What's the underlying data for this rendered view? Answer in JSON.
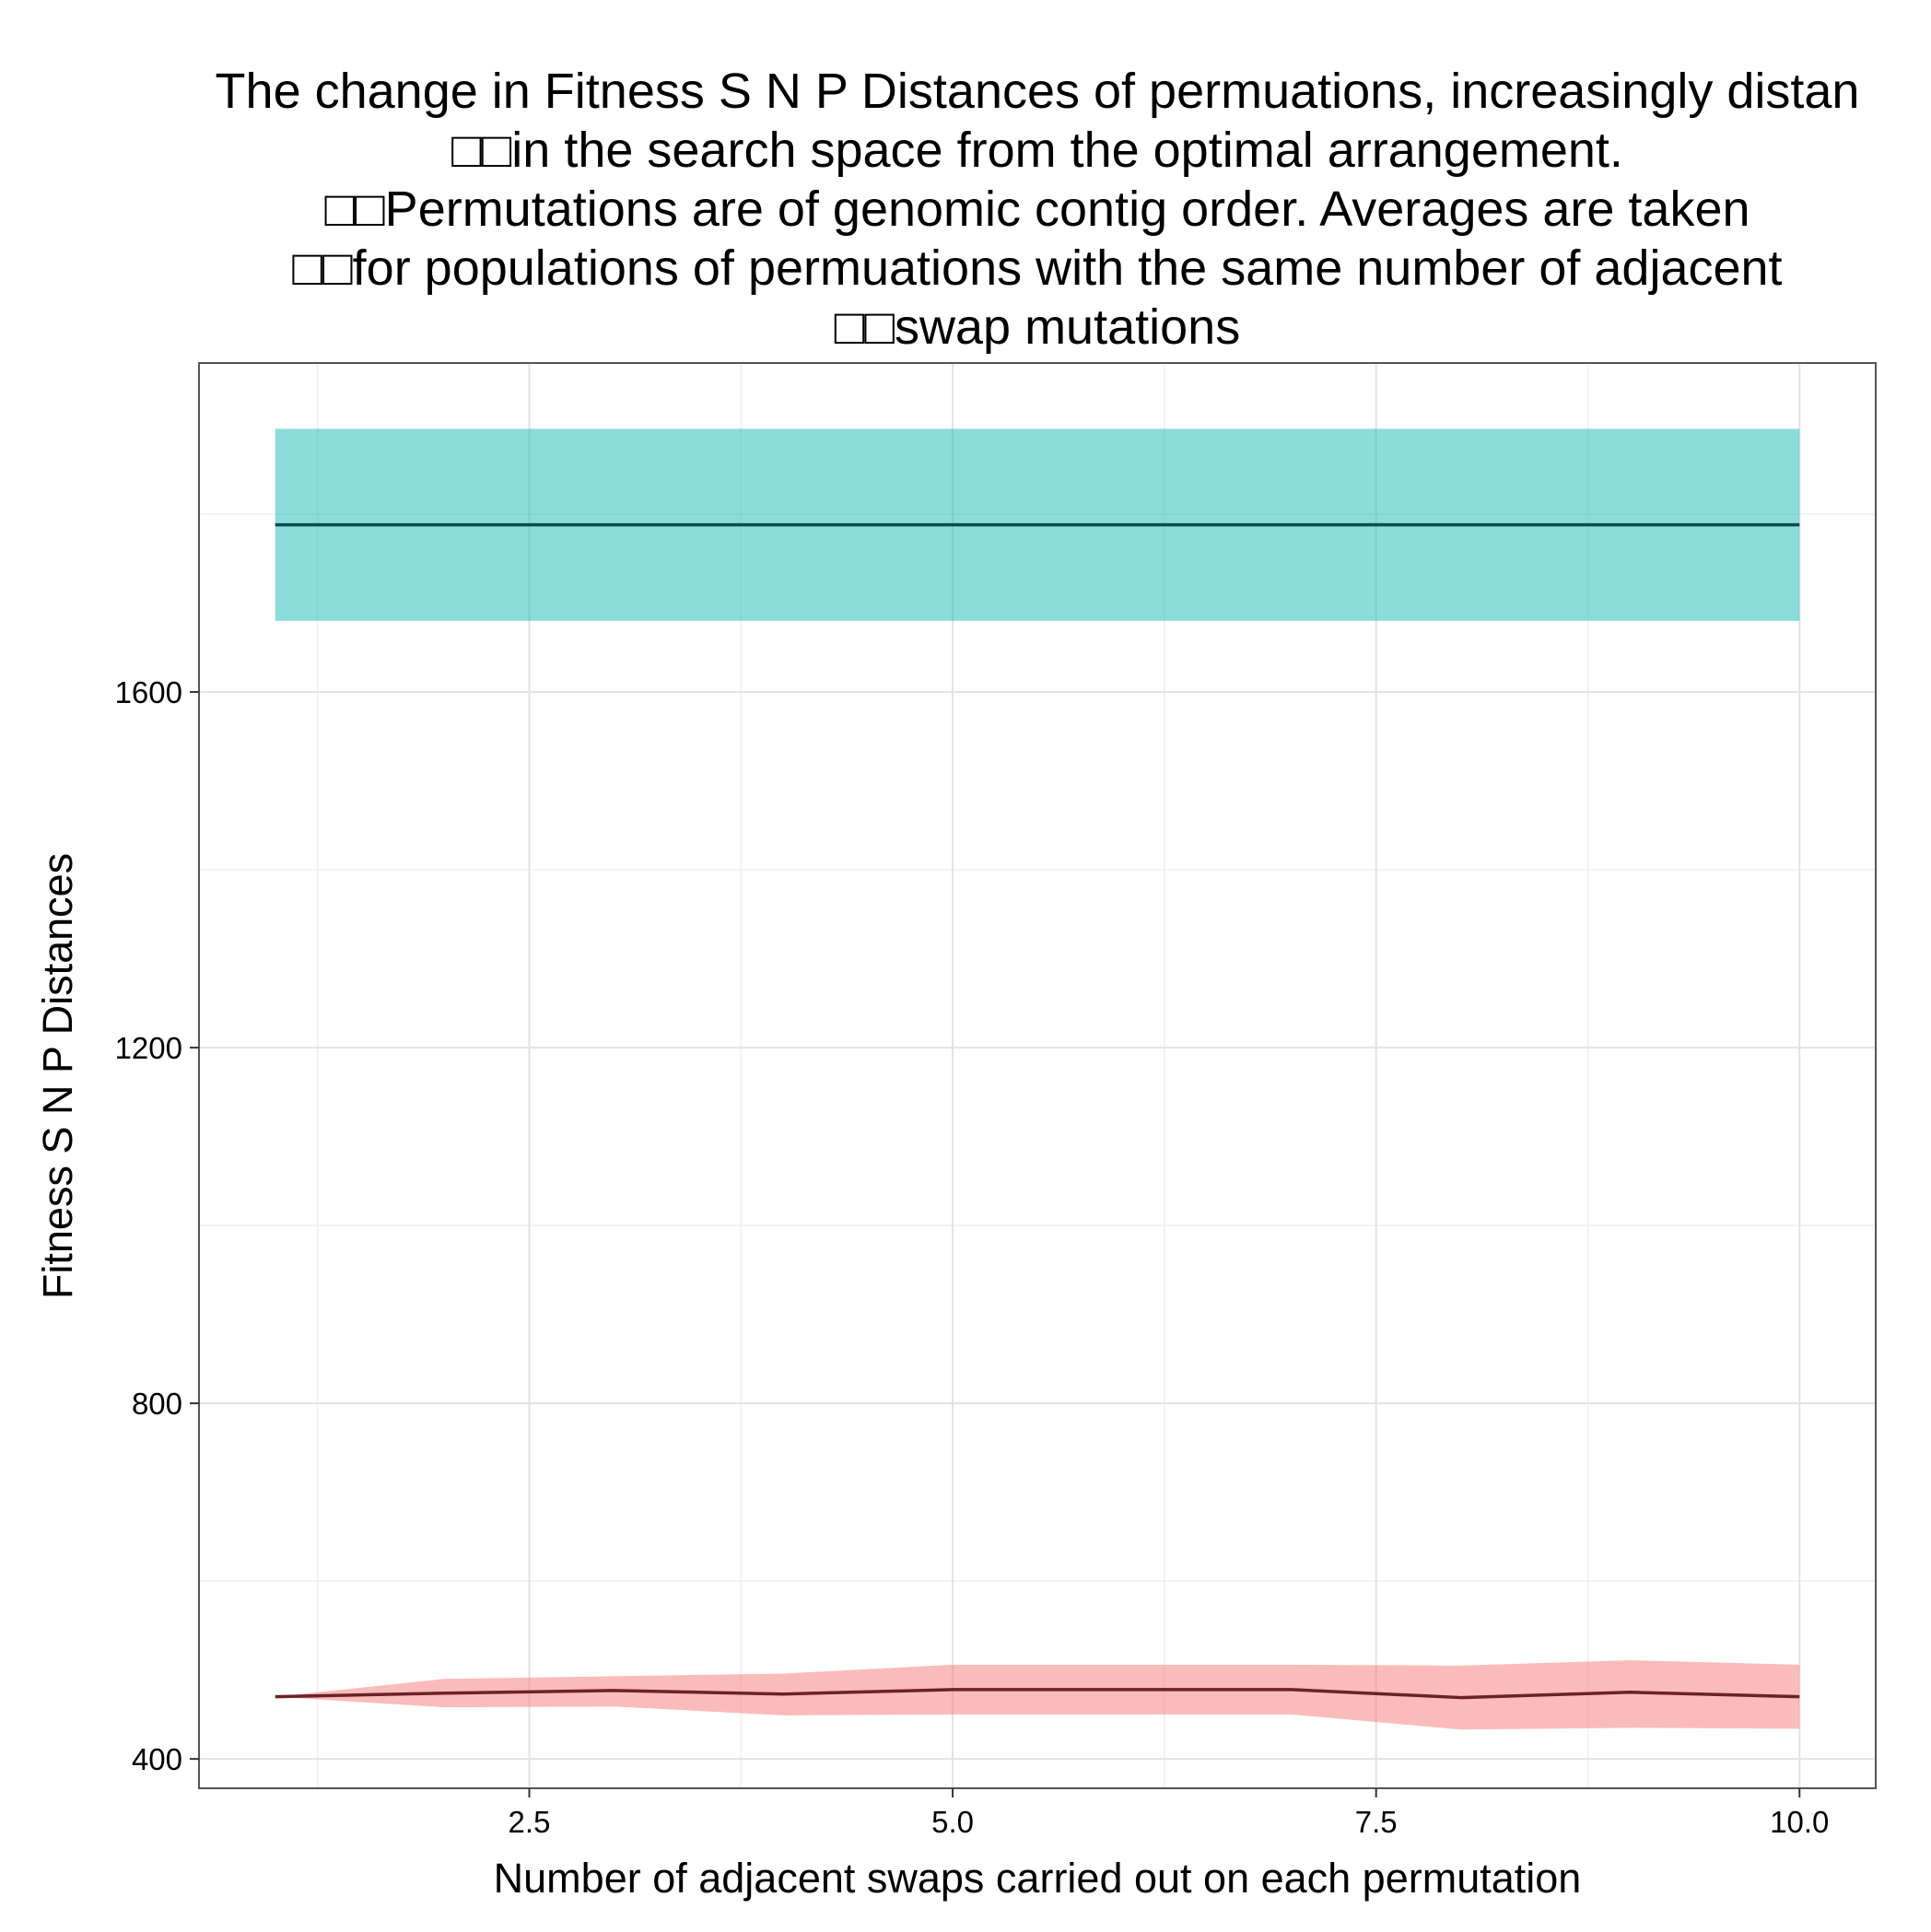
{
  "chart_data": {
    "type": "line",
    "title_lines": [
      "The change in Fitness S N P Distances of permuations, increasingly distan",
      "□□in the search space from the optimal arrangement.",
      "□□Permutations are of genomic contig order. Averages are taken",
      "□□for populations of permuations with the same number of adjacent",
      "□□swap mutations"
    ],
    "xlabel": "Number of adjacent swaps carried out on each permutation",
    "ylabel": "Fitness S N P Distances",
    "xlim": [
      0.55,
      10.45
    ],
    "ylim": [
      367,
      1970
    ],
    "x_ticks": [
      2.5,
      5.0,
      7.5,
      10.0
    ],
    "x_tick_labels": [
      "2.5",
      "5.0",
      "7.5",
      "10.0"
    ],
    "x_minor_ticks": [
      1.25,
      3.75,
      6.25,
      8.75
    ],
    "y_ticks": [
      400,
      800,
      1200,
      1600
    ],
    "y_tick_labels": [
      "400",
      "800",
      "1200",
      "1600"
    ],
    "y_minor_ticks": [
      600,
      1000,
      1400,
      1800
    ],
    "grid": true,
    "legend": "none",
    "series": [
      {
        "x": [
          1,
          2,
          3,
          4,
          5,
          6,
          7,
          8,
          9,
          10
        ],
        "y": [
          1788,
          1788,
          1788,
          1788,
          1788,
          1788,
          1788,
          1788,
          1788,
          1788
        ],
        "lower": [
          1680,
          1680,
          1680,
          1680,
          1680,
          1680,
          1680,
          1680,
          1680,
          1680
        ],
        "upper": [
          1896,
          1896,
          1896,
          1896,
          1896,
          1896,
          1896,
          1896,
          1896,
          1896
        ],
        "line_color": "#0f4a4e",
        "band_color": "#1cb9ba"
      },
      {
        "x": [
          1,
          2,
          3,
          4,
          5,
          6,
          7,
          8,
          9,
          10
        ],
        "y": [
          470,
          474,
          477,
          473,
          478,
          478,
          478,
          469,
          475,
          470
        ],
        "lower": [
          470,
          458,
          459,
          449,
          450,
          450,
          450,
          433,
          435,
          434
        ],
        "upper": [
          470,
          490,
          493,
          496,
          506,
          506,
          506,
          505,
          511,
          506
        ],
        "line_color": "#6b2226",
        "band_color": "#f57a78"
      }
    ],
    "colors": {
      "panel_border": "#555555",
      "grid_major": "#e3e3e3",
      "grid_minor": "#f3f3f3"
    }
  }
}
